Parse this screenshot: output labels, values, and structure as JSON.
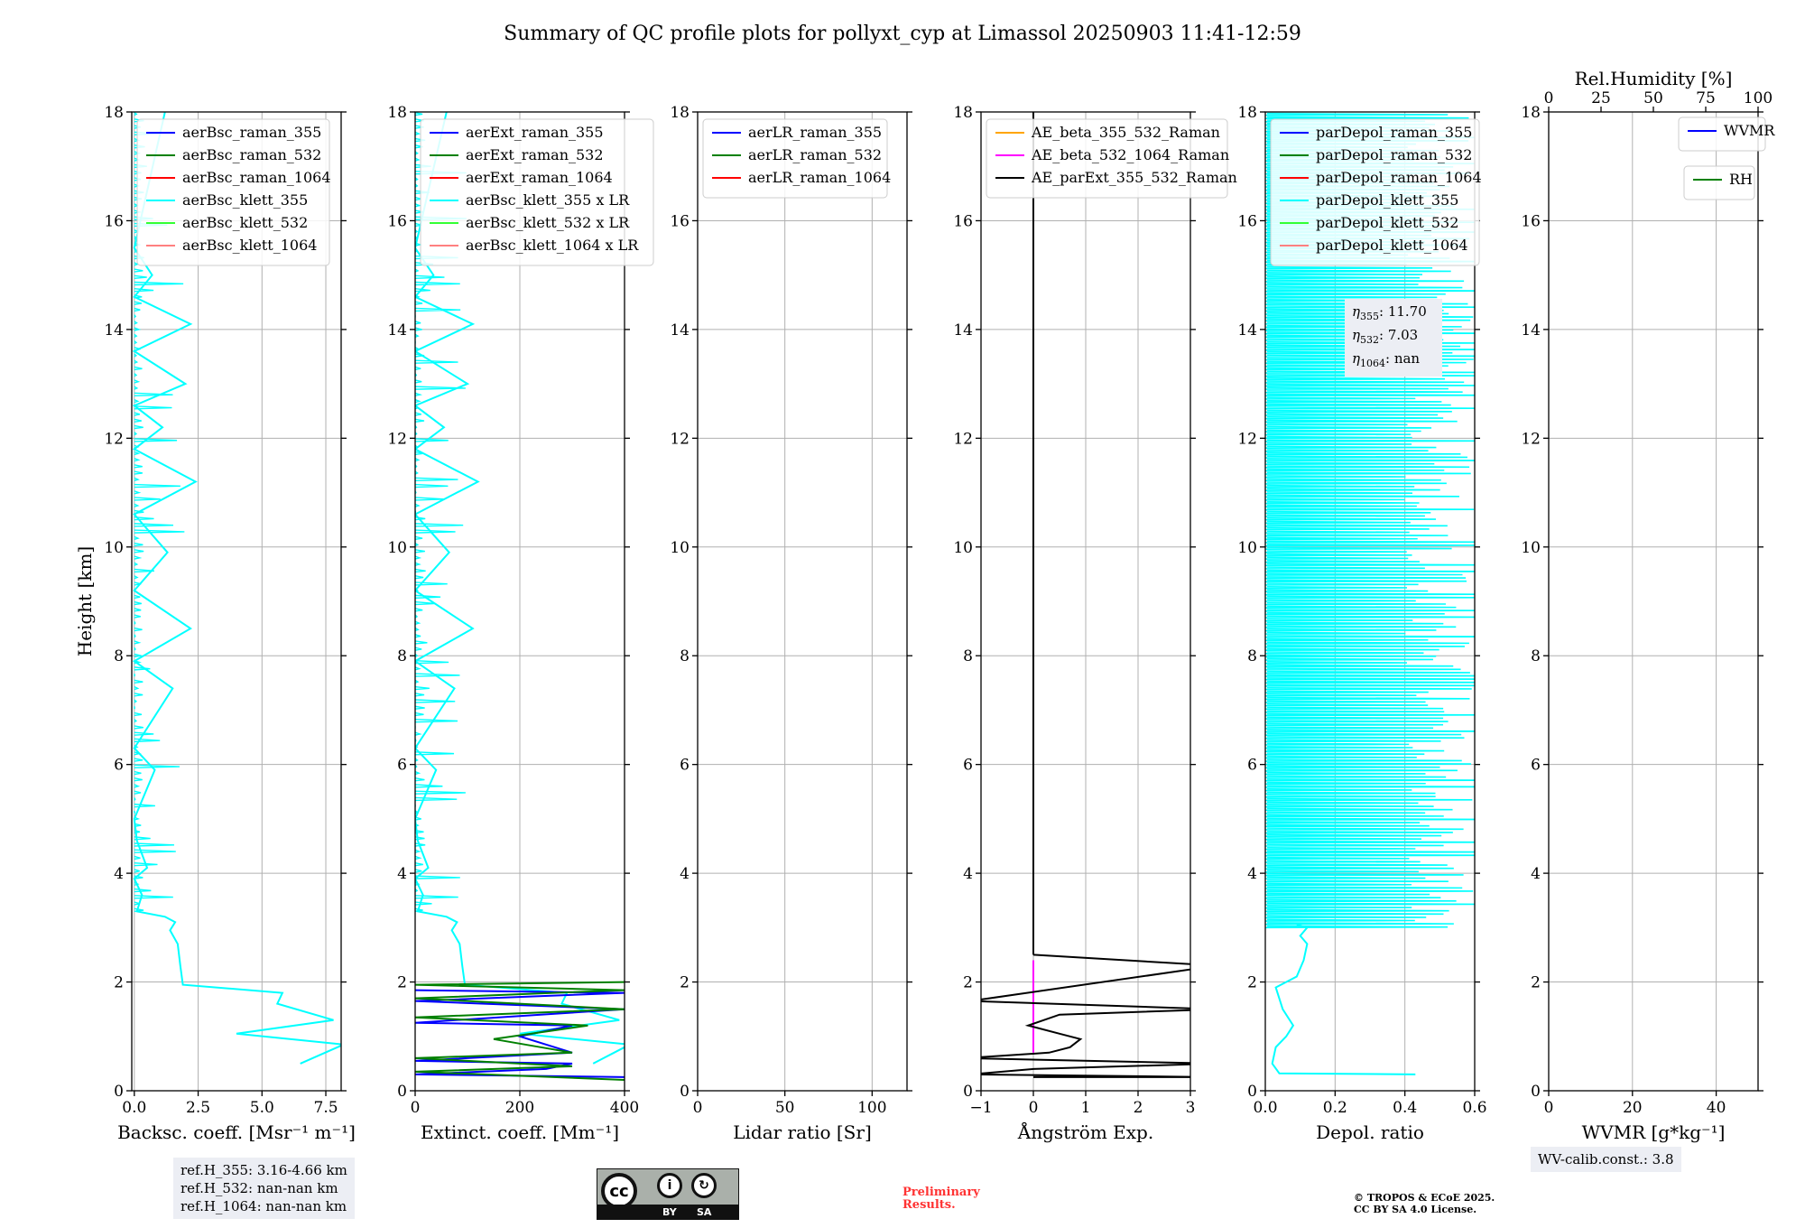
{
  "title": "Summary of QC profile plots for pollyxt_cyp at Limassol 20250903 11:41-12:59",
  "chart_data": [
    {
      "type": "line",
      "id": "backscatter",
      "xlabel": "Backsc. coeff. [Msr⁻¹ m⁻¹]",
      "ylabel": "Height [km]",
      "xlim": [
        -0.1,
        8.1
      ],
      "ylim": [
        0,
        18
      ],
      "xticks": [
        0.0,
        2.5,
        5.0,
        7.5
      ],
      "xtick_labels": [
        "0.0",
        "2.5",
        "5.0",
        "7.5"
      ],
      "yticks": [
        0,
        2,
        4,
        6,
        8,
        10,
        12,
        14,
        16,
        18
      ],
      "legend": [
        {
          "label": "aerBsc_raman_355",
          "color": "#0000ff"
        },
        {
          "label": "aerBsc_raman_532",
          "color": "#008000"
        },
        {
          "label": "aerBsc_raman_1064",
          "color": "#ff0000"
        },
        {
          "label": "aerBsc_klett_355",
          "color": "#00ffff"
        },
        {
          "label": "aerBsc_klett_532",
          "color": "#33ff33"
        },
        {
          "label": "aerBsc_klett_1064",
          "color": "#ff8080"
        }
      ],
      "series": [
        {
          "name": "aerBsc_klett_355",
          "color": "#00ffff",
          "x": [
            6.5,
            8.2,
            4.0,
            7.8,
            5.6,
            5.8,
            1.9,
            1.8,
            1.7,
            1.4,
            1.6,
            1.2,
            0.1,
            0.3,
            0.0,
            0.5,
            0.1,
            0.0,
            0.8,
            0.0,
            1.5,
            0.0,
            2.2,
            0.0,
            1.3,
            0.0,
            2.4,
            0.0,
            1.1,
            0.0,
            2.0,
            0.0,
            2.2,
            0.0,
            0.7,
            0.0,
            1.2
          ],
          "y": [
            0.5,
            0.85,
            1.05,
            1.3,
            1.6,
            1.8,
            1.95,
            2.3,
            2.7,
            2.95,
            3.1,
            3.2,
            3.3,
            3.6,
            3.9,
            4.1,
            4.6,
            5.0,
            5.9,
            6.3,
            7.4,
            7.9,
            8.5,
            9.2,
            9.9,
            10.6,
            11.2,
            11.8,
            12.2,
            12.6,
            13.0,
            13.6,
            14.1,
            14.6,
            15.0,
            15.5,
            18.0
          ]
        }
      ]
    },
    {
      "type": "line",
      "id": "extinction",
      "xlabel": "Extinct. coeff. [Mm⁻¹]",
      "xlim": [
        0,
        400
      ],
      "ylim": [
        0,
        18
      ],
      "xticks": [
        0,
        200,
        400
      ],
      "xtick_labels": [
        "0",
        "200",
        "400"
      ],
      "yticks": [
        0,
        2,
        4,
        6,
        8,
        10,
        12,
        14,
        16,
        18
      ],
      "legend": [
        {
          "label": "aerExt_raman_355",
          "color": "#0000ff"
        },
        {
          "label": "aerExt_raman_532",
          "color": "#008000"
        },
        {
          "label": "aerExt_raman_1064",
          "color": "#ff0000"
        },
        {
          "label": "aerBsc_klett_355 x LR",
          "color": "#00ffff"
        },
        {
          "label": "aerBsc_klett_532 x LR",
          "color": "#33ff33"
        },
        {
          "label": "aerBsc_klett_1064 x LR",
          "color": "#ff8080"
        }
      ],
      "series": [
        {
          "name": "aerBsc_klett_355 x LR",
          "color": "#00ffff",
          "x": [
            340,
            410,
            200,
            390,
            280,
            290,
            95,
            90,
            85,
            70,
            80,
            60,
            5,
            15,
            0,
            25,
            5,
            0,
            40,
            0,
            75,
            0,
            110,
            0,
            65,
            0,
            120,
            0,
            55,
            0,
            100,
            0,
            110,
            0,
            35,
            0,
            60
          ],
          "y": [
            0.5,
            0.85,
            1.05,
            1.3,
            1.6,
            1.8,
            1.95,
            2.3,
            2.7,
            2.95,
            3.1,
            3.2,
            3.3,
            3.6,
            3.9,
            4.1,
            4.6,
            5.0,
            5.9,
            6.3,
            7.4,
            7.9,
            8.5,
            9.2,
            9.9,
            10.6,
            11.2,
            11.8,
            12.2,
            12.6,
            13.0,
            13.6,
            14.1,
            14.6,
            15.0,
            15.5,
            18.0
          ]
        },
        {
          "name": "aerExt_raman_355",
          "color": "#0000ff",
          "x": [
            400,
            0,
            250,
            300,
            0,
            300,
            200,
            300,
            0,
            400,
            0,
            400,
            0
          ],
          "y": [
            0.25,
            0.3,
            0.4,
            0.5,
            0.55,
            0.7,
            1.0,
            1.2,
            1.25,
            1.5,
            1.65,
            1.8,
            1.85
          ]
        },
        {
          "name": "aerExt_raman_532",
          "color": "#008000",
          "x": [
            400,
            0,
            300,
            0,
            300,
            150,
            330,
            0,
            400,
            0,
            400,
            0,
            400
          ],
          "y": [
            0.2,
            0.35,
            0.45,
            0.6,
            0.7,
            0.95,
            1.2,
            1.35,
            1.5,
            1.7,
            1.85,
            1.95,
            2.0
          ]
        }
      ]
    },
    {
      "type": "line",
      "id": "lidar_ratio",
      "xlabel": "Lidar ratio [Sr]",
      "xlim": [
        0,
        120
      ],
      "ylim": [
        0,
        18
      ],
      "xticks": [
        0,
        50,
        100
      ],
      "xtick_labels": [
        "0",
        "50",
        "100"
      ],
      "yticks": [
        0,
        2,
        4,
        6,
        8,
        10,
        12,
        14,
        16,
        18
      ],
      "legend": [
        {
          "label": "aerLR_raman_355",
          "color": "#0000ff"
        },
        {
          "label": "aerLR_raman_532",
          "color": "#008000"
        },
        {
          "label": "aerLR_raman_1064",
          "color": "#ff0000"
        }
      ],
      "series": []
    },
    {
      "type": "line",
      "id": "angstrom",
      "xlabel": "Ångström Exp.",
      "xlim": [
        -1,
        3
      ],
      "ylim": [
        0,
        18
      ],
      "xticks": [
        -1,
        0,
        1,
        2,
        3
      ],
      "xtick_labels": [
        "−1",
        "0",
        "1",
        "2",
        "3"
      ],
      "yticks": [
        0,
        2,
        4,
        6,
        8,
        10,
        12,
        14,
        16,
        18
      ],
      "legend": [
        {
          "label": "AE_beta_355_532_Raman",
          "color": "#ffa500"
        },
        {
          "label": "AE_beta_532_1064_Raman",
          "color": "#ff00ff"
        },
        {
          "label": "AE_parExt_355_532_Raman",
          "color": "#000000"
        }
      ],
      "series": [
        {
          "name": "AE_beta_532_1064_Raman",
          "color": "#ff00ff",
          "x": [
            0,
            0
          ],
          "y": [
            0.7,
            2.4
          ]
        },
        {
          "name": "AE_parExt_355_532_Raman",
          "color": "#000000",
          "x": [
            0,
            3.5,
            -1.2,
            0,
            3.5,
            -1.3,
            0.3,
            0.7,
            0.9,
            0.5,
            -0.1,
            0.5,
            3.5,
            -1.2,
            3.5,
            0
          ],
          "y": [
            0.25,
            0.25,
            0.3,
            0.4,
            0.5,
            0.6,
            0.7,
            0.8,
            0.95,
            1.05,
            1.2,
            1.4,
            1.5,
            1.65,
            2.3,
            2.5
          ]
        },
        {
          "name": "AE_parExt_355_532_Raman_upper",
          "color": "#000000",
          "x": [
            0,
            0
          ],
          "y": [
            2.5,
            18
          ]
        }
      ]
    },
    {
      "type": "line",
      "id": "depolarization",
      "xlabel": "Depol. ratio",
      "xlim": [
        0,
        0.6
      ],
      "ylim": [
        0,
        18
      ],
      "xticks": [
        0.0,
        0.2,
        0.4,
        0.6
      ],
      "xtick_labels": [
        "0.0",
        "0.2",
        "0.4",
        "0.6"
      ],
      "yticks": [
        0,
        2,
        4,
        6,
        8,
        10,
        12,
        14,
        16,
        18
      ],
      "legend": [
        {
          "label": "parDepol_raman_355",
          "color": "#0000ff"
        },
        {
          "label": "parDepol_raman_532",
          "color": "#008000"
        },
        {
          "label": "parDepol_raman_1064",
          "color": "#ff0000"
        },
        {
          "label": "parDepol_klett_355",
          "color": "#00ffff"
        },
        {
          "label": "parDepol_klett_532",
          "color": "#33ff33"
        },
        {
          "label": "parDepol_klett_1064",
          "color": "#ff8080"
        }
      ],
      "series": [
        {
          "name": "parDepol_klett_355",
          "color": "#00ffff",
          "x": [
            0.43,
            0.04,
            0.02,
            0.03,
            0.06,
            0.08,
            0.05,
            0.03,
            0.09,
            0.11,
            0.12,
            0.1,
            0.12,
            0.09
          ],
          "y": [
            0.3,
            0.32,
            0.5,
            0.8,
            1.0,
            1.2,
            1.5,
            1.9,
            2.1,
            2.4,
            2.7,
            2.85,
            3.0,
            3.05
          ]
        }
      ]
    },
    {
      "type": "line",
      "id": "water_vapor",
      "xlabel": "WVMR [g*kg⁻¹]",
      "top_xlabel": "Rel.Humidity [%]",
      "xlim": [
        0,
        50
      ],
      "ylim": [
        0,
        18
      ],
      "xticks": [
        0,
        20,
        40
      ],
      "xtick_labels": [
        "0",
        "20",
        "40"
      ],
      "top_xticks": [
        0,
        25,
        50,
        75,
        100
      ],
      "top_xtick_labels": [
        "0",
        "25",
        "50",
        "75",
        "100"
      ],
      "yticks": [
        0,
        2,
        4,
        6,
        8,
        10,
        12,
        14,
        16,
        18
      ],
      "legend": [
        {
          "label": "WVMR",
          "color": "#0000ff"
        }
      ],
      "legend2": [
        {
          "label": "RH",
          "color": "#008000"
        }
      ],
      "series": []
    }
  ],
  "annotations": {
    "ref_heights": [
      "ref.H_355: 3.16-4.66 km",
      "ref.H_532: nan-nan km",
      "ref.H_1064: nan-nan km"
    ],
    "eta_lines": [
      {
        "sub": "355",
        "value": ": 11.70"
      },
      {
        "sub": "532",
        "value": ": 7.03"
      },
      {
        "sub": "1064",
        "value": ": nan"
      }
    ],
    "wv_calib": "WV-calib.const.: 3.8",
    "license_by": "BY",
    "license_sa": "SA",
    "license_cc": "cc",
    "preliminary": [
      "Preliminary",
      "Results."
    ],
    "copyright": [
      "© TROPOS & ECoE 2025.",
      "CC BY SA 4.0 License."
    ]
  }
}
